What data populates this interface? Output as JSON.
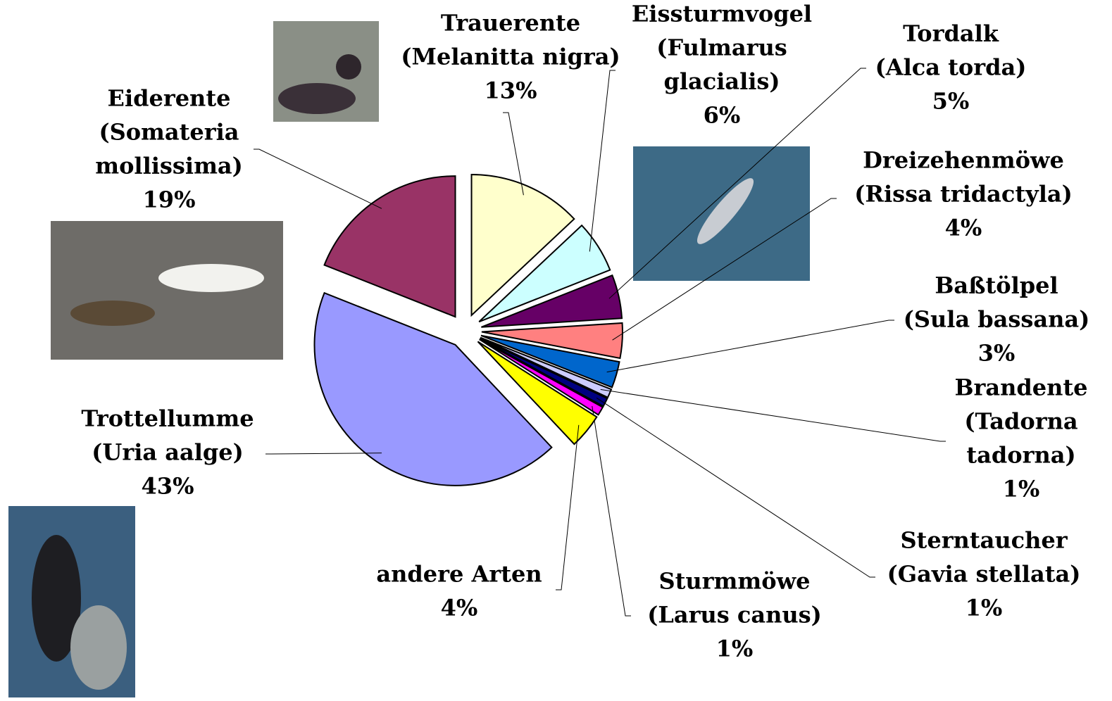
{
  "chart_data": {
    "type": "pie",
    "categories": [
      [
        "Trauerente",
        "(Melanitta nigra)"
      ],
      [
        "Eissturmvogel",
        "(Fulmarus",
        "glacialis)"
      ],
      [
        "Tordalk",
        "(Alca torda)"
      ],
      [
        "Dreizehenmöwe",
        "(Rissa tridactyla)"
      ],
      [
        "Baßtölpel",
        "(Sula bassana)"
      ],
      [
        "Brandente",
        "(Tadorna",
        "tadorna)"
      ],
      [
        "Sterntaucher",
        "(Gavia stellata)"
      ],
      [
        "Sturmmöwe",
        "(Larus canus)"
      ],
      [
        "andere Arten"
      ],
      [
        "Trottellumme",
        "(Uria aalge)"
      ],
      [
        "Eiderente",
        "(Somateria",
        "mollissima)"
      ]
    ],
    "values": [
      13,
      6,
      5,
      4,
      3,
      1,
      1,
      1,
      4,
      43,
      19
    ],
    "value_labels": [
      "13%",
      "6%",
      "5%",
      "4%",
      "3%",
      "1%",
      "1%",
      "1%",
      "4%",
      "43%",
      "19%"
    ],
    "colors": [
      "#ffffcc",
      "#ccffff",
      "#660066",
      "#ff8080",
      "#0066cc",
      "#ccccff",
      "#000080",
      "#ff00ff",
      "#ffff00",
      "#9999ff",
      "#993366"
    ]
  }
}
